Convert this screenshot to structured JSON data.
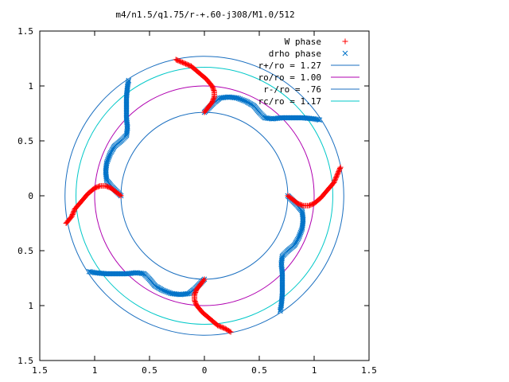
{
  "chart_data": {
    "type": "scatter",
    "title": "m4/n1.5/q1.75/r-+.60-j308/M1.0/512",
    "xlabel": "",
    "ylabel": "",
    "xlim": [
      -1.5,
      1.5
    ],
    "ylim": [
      -1.5,
      1.5
    ],
    "x_tick_values": [
      -1.5,
      -1,
      -0.5,
      0,
      0.5,
      1,
      1.5
    ],
    "x_tick_labels": [
      "1.5",
      "1",
      "0.5",
      "0",
      "0.5",
      "1",
      "1.5"
    ],
    "y_tick_values": [
      1.5,
      1,
      0.5,
      0,
      -0.5,
      -1,
      -1.5
    ],
    "y_tick_labels": [
      "1.5",
      "1",
      "0.5",
      "0",
      "0.5",
      "1",
      "1.5"
    ],
    "grid": false,
    "legend_position": "top-right",
    "legend": [
      {
        "label": "W phase",
        "symbol": "+",
        "color": "#ff0000"
      },
      {
        "label": "drho phase",
        "symbol": "x",
        "color": "#0072c8"
      },
      {
        "label": "r+/ro = 1.27",
        "symbol": "line",
        "color": "#1a6fc0"
      },
      {
        "label": "ro/ro = 1.00",
        "symbol": "line",
        "color": "#b000b0"
      },
      {
        "label": "r-/ro = .76",
        "symbol": "line",
        "color": "#1a6fc0"
      },
      {
        "label": "rc/ro = 1.17",
        "symbol": "line",
        "color": "#00c8c8"
      }
    ],
    "circles": [
      {
        "name": "r+/ro",
        "radius": 1.27,
        "color": "#1a6fc0"
      },
      {
        "name": "ro/ro",
        "radius": 1.0,
        "color": "#b000b0"
      },
      {
        "name": "r-/ro",
        "radius": 0.76,
        "color": "#1a6fc0"
      },
      {
        "name": "rc/ro",
        "radius": 1.17,
        "color": "#00c8c8"
      }
    ],
    "series": [
      {
        "name": "W phase",
        "marker": "+",
        "color": "#ff0000",
        "arms": [
          [
            [
              0.0,
              0.76
            ],
            [
              0.03,
              0.8
            ],
            [
              0.07,
              0.85
            ],
            [
              0.09,
              0.9
            ],
            [
              0.09,
              0.95
            ],
            [
              0.07,
              1.0
            ],
            [
              0.02,
              1.06
            ],
            [
              -0.05,
              1.12
            ],
            [
              -0.12,
              1.18
            ],
            [
              -0.19,
              1.21
            ],
            [
              -0.26,
              1.24
            ]
          ],
          [
            [
              0.76,
              0.0
            ],
            [
              0.8,
              -0.03
            ],
            [
              0.85,
              -0.07
            ],
            [
              0.9,
              -0.09
            ],
            [
              0.95,
              -0.09
            ],
            [
              1.0,
              -0.07
            ],
            [
              1.06,
              -0.02
            ],
            [
              1.12,
              0.05
            ],
            [
              1.18,
              0.12
            ],
            [
              1.21,
              0.19
            ],
            [
              1.24,
              0.26
            ]
          ],
          [
            [
              0.0,
              -0.76
            ],
            [
              -0.03,
              -0.8
            ],
            [
              -0.07,
              -0.85
            ],
            [
              -0.09,
              -0.9
            ],
            [
              -0.09,
              -0.95
            ],
            [
              -0.07,
              -1.0
            ],
            [
              -0.02,
              -1.06
            ],
            [
              0.05,
              -1.12
            ],
            [
              0.12,
              -1.18
            ],
            [
              0.19,
              -1.21
            ],
            [
              0.24,
              -1.24
            ]
          ],
          [
            [
              -0.76,
              0.0
            ],
            [
              -0.8,
              0.03
            ],
            [
              -0.85,
              0.07
            ],
            [
              -0.9,
              0.09
            ],
            [
              -0.95,
              0.09
            ],
            [
              -1.0,
              0.07
            ],
            [
              -1.06,
              0.02
            ],
            [
              -1.12,
              -0.05
            ],
            [
              -1.18,
              -0.12
            ],
            [
              -1.21,
              -0.19
            ],
            [
              -1.26,
              -0.25
            ]
          ]
        ]
      },
      {
        "name": "drho phase",
        "marker": "x",
        "color": "#0072c8",
        "arms": [
          [
            [
              0.0,
              0.76
            ],
            [
              0.05,
              0.81
            ],
            [
              0.09,
              0.85
            ],
            [
              0.14,
              0.89
            ],
            [
              0.22,
              0.9
            ],
            [
              0.3,
              0.89
            ],
            [
              0.38,
              0.86
            ],
            [
              0.45,
              0.82
            ],
            [
              0.5,
              0.76
            ],
            [
              0.55,
              0.71
            ],
            [
              0.62,
              0.7
            ],
            [
              0.7,
              0.71
            ],
            [
              0.8,
              0.71
            ],
            [
              0.9,
              0.71
            ],
            [
              1.0,
              0.7
            ],
            [
              1.05,
              0.69
            ]
          ],
          [
            [
              0.76,
              0.0
            ],
            [
              0.81,
              -0.05
            ],
            [
              0.85,
              -0.09
            ],
            [
              0.89,
              -0.14
            ],
            [
              0.9,
              -0.22
            ],
            [
              0.89,
              -0.3
            ],
            [
              0.86,
              -0.38
            ],
            [
              0.82,
              -0.45
            ],
            [
              0.76,
              -0.5
            ],
            [
              0.71,
              -0.55
            ],
            [
              0.7,
              -0.62
            ],
            [
              0.71,
              -0.7
            ],
            [
              0.71,
              -0.8
            ],
            [
              0.71,
              -0.9
            ],
            [
              0.7,
              -1.0
            ],
            [
              0.69,
              -1.05
            ]
          ],
          [
            [
              0.0,
              -0.76
            ],
            [
              -0.05,
              -0.81
            ],
            [
              -0.09,
              -0.85
            ],
            [
              -0.14,
              -0.89
            ],
            [
              -0.22,
              -0.9
            ],
            [
              -0.3,
              -0.89
            ],
            [
              -0.38,
              -0.86
            ],
            [
              -0.45,
              -0.82
            ],
            [
              -0.5,
              -0.76
            ],
            [
              -0.55,
              -0.71
            ],
            [
              -0.62,
              -0.7
            ],
            [
              -0.7,
              -0.71
            ],
            [
              -0.8,
              -0.71
            ],
            [
              -0.9,
              -0.71
            ],
            [
              -1.0,
              -0.7
            ],
            [
              -1.05,
              -0.69
            ]
          ],
          [
            [
              -0.76,
              0.0
            ],
            [
              -0.81,
              0.05
            ],
            [
              -0.85,
              0.09
            ],
            [
              -0.89,
              0.14
            ],
            [
              -0.9,
              0.22
            ],
            [
              -0.89,
              0.3
            ],
            [
              -0.86,
              0.38
            ],
            [
              -0.82,
              0.45
            ],
            [
              -0.76,
              0.5
            ],
            [
              -0.71,
              0.55
            ],
            [
              -0.7,
              0.62
            ],
            [
              -0.71,
              0.7
            ],
            [
              -0.71,
              0.8
            ],
            [
              -0.71,
              0.9
            ],
            [
              -0.7,
              1.0
            ],
            [
              -0.69,
              1.05
            ]
          ]
        ]
      }
    ]
  }
}
